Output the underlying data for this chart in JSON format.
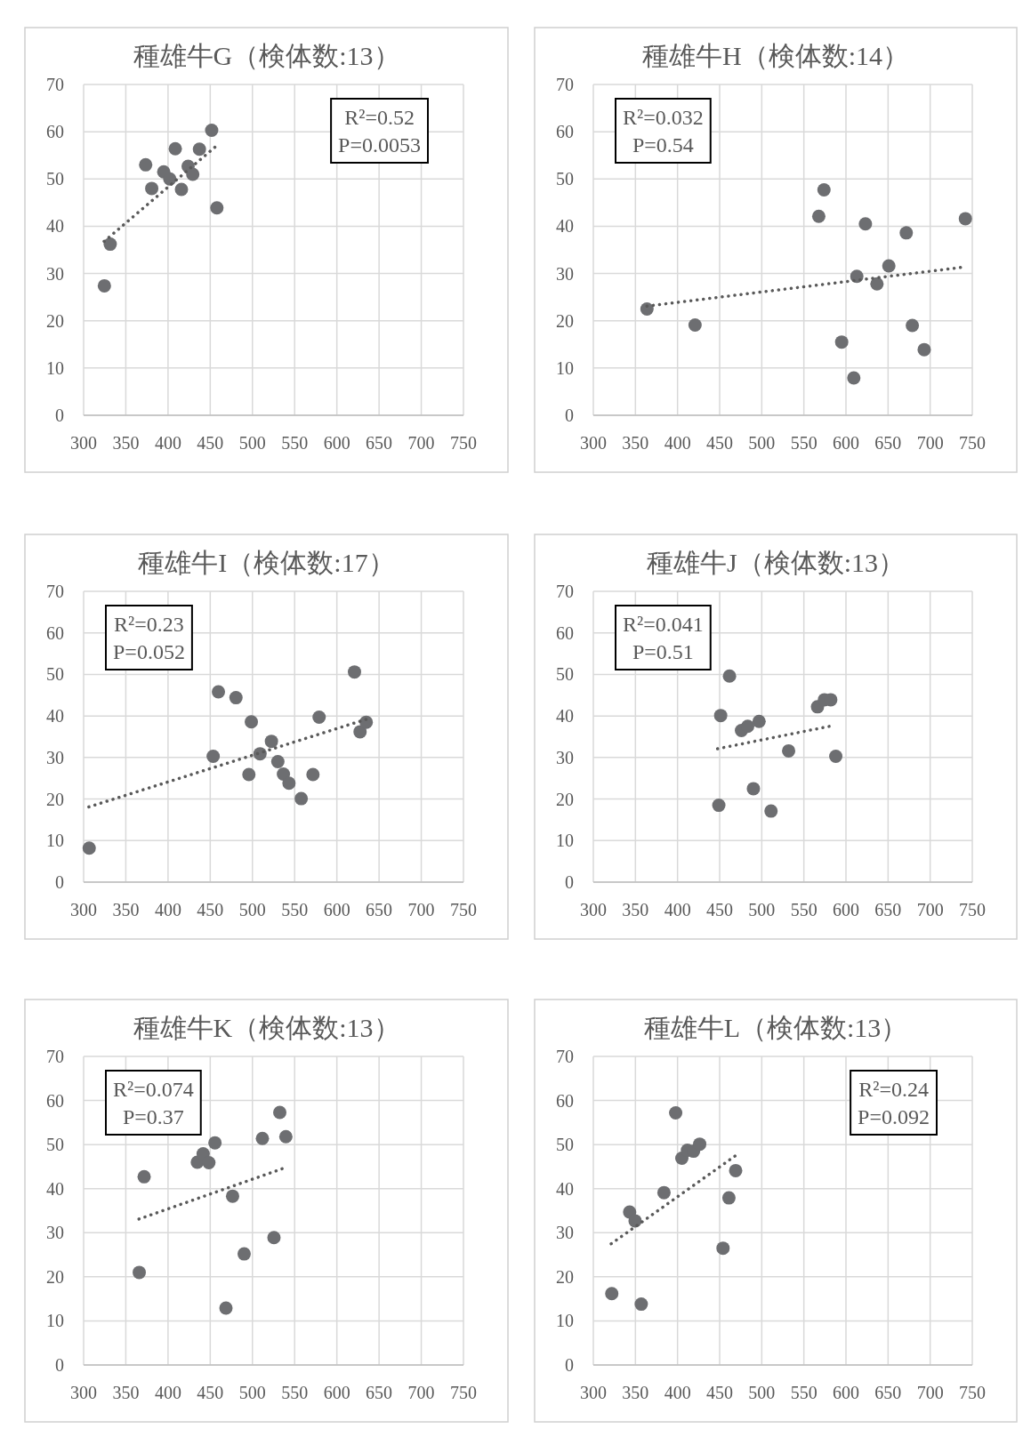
{
  "chart_data": [
    {
      "type": "scatter",
      "title": "種雄牛G（検体数:13）",
      "xlim": [
        300,
        750
      ],
      "xticks": [
        300,
        350,
        400,
        450,
        500,
        550,
        600,
        650,
        700,
        750
      ],
      "ylim": [
        0,
        70
      ],
      "yticks": [
        0,
        10,
        20,
        30,
        40,
        50,
        60,
        70
      ],
      "grid": true,
      "annotations": [
        "R²=0.52",
        "P=0.0053"
      ],
      "series": [
        {
          "type": "scatter",
          "marker": "circle",
          "color": "#6d6e71",
          "x": [
            324.6,
            331.5,
            373.5,
            380.7,
            394.9,
            402.1,
            408.6,
            415.9,
            423.8,
            429.3,
            437.2,
            451.7,
            457.9
          ],
          "values": [
            27.4,
            36.2,
            53.0,
            48.0,
            51.5,
            50.0,
            56.4,
            47.8,
            52.7,
            51.0,
            56.3,
            60.3,
            43.9
          ]
        },
        {
          "type": "line",
          "line_style": "dotted",
          "color": "#595959",
          "x": [
            324.3,
            458.6
          ],
          "values": [
            36.8,
            57.2
          ]
        }
      ]
    },
    {
      "type": "scatter",
      "title": "種雄牛H（検体数:14）",
      "xlim": [
        300,
        750
      ],
      "xticks": [
        300,
        350,
        400,
        450,
        500,
        550,
        600,
        650,
        700,
        750
      ],
      "ylim": [
        0,
        70
      ],
      "yticks": [
        0,
        10,
        20,
        30,
        40,
        50,
        60,
        70
      ],
      "grid": true,
      "annotations": [
        "R²=0.032",
        "P=0.54"
      ],
      "series": [
        {
          "type": "scatter",
          "marker": "circle",
          "color": "#6d6e71",
          "x": [
            363.7,
            420.8,
            567.7,
            573.9,
            594.9,
            609.3,
            612.9,
            623.1,
            636.8,
            650.9,
            671.6,
            678.8,
            692.9,
            741.8
          ],
          "values": [
            22.5,
            19.1,
            42.1,
            47.7,
            15.5,
            7.9,
            29.4,
            40.5,
            27.8,
            31.6,
            38.6,
            19.0,
            13.9,
            41.6
          ]
        },
        {
          "type": "line",
          "line_style": "dotted",
          "color": "#595959",
          "x": [
            363.7,
            737.1
          ],
          "values": [
            23.1,
            31.3
          ]
        }
      ]
    },
    {
      "type": "scatter",
      "title": "種雄牛I（検体数:17）",
      "xlim": [
        300,
        750
      ],
      "xticks": [
        300,
        350,
        400,
        450,
        500,
        550,
        600,
        650,
        700,
        750
      ],
      "ylim": [
        0,
        70
      ],
      "yticks": [
        0,
        10,
        20,
        30,
        40,
        50,
        60,
        70
      ],
      "grid": true,
      "annotations": [
        "R²=0.23",
        "P=0.052"
      ],
      "series": [
        {
          "type": "scatter",
          "marker": "circle",
          "color": "#6d6e71",
          "x": [
            306.6,
            453.5,
            459.7,
            480.5,
            495.8,
            498.7,
            509.0,
            522.5,
            530.1,
            536.7,
            543.3,
            557.8,
            571.7,
            579.0,
            620.9,
            627.5,
            634.8
          ],
          "values": [
            8.2,
            30.3,
            45.8,
            44.4,
            25.9,
            38.6,
            30.9,
            33.9,
            29.0,
            26.0,
            23.8,
            20.1,
            25.9,
            39.7,
            50.6,
            36.2,
            38.5
          ]
        },
        {
          "type": "line",
          "line_style": "dotted",
          "color": "#595959",
          "x": [
            306.2,
            634.8
          ],
          "values": [
            18.1,
            39.2
          ]
        }
      ]
    },
    {
      "type": "scatter",
      "title": "種雄牛J（検体数:13）",
      "xlim": [
        300,
        750
      ],
      "xticks": [
        300,
        350,
        400,
        450,
        500,
        550,
        600,
        650,
        700,
        750
      ],
      "ylim": [
        0,
        70
      ],
      "yticks": [
        0,
        10,
        20,
        30,
        40,
        50,
        60,
        70
      ],
      "grid": true,
      "annotations": [
        "R²=0.041",
        "P=0.51"
      ],
      "series": [
        {
          "type": "scatter",
          "marker": "circle",
          "color": "#6d6e71",
          "x": [
            449.0,
            451.2,
            461.7,
            475.9,
            483.3,
            490.1,
            496.8,
            511.0,
            531.9,
            566.2,
            574.4,
            581.9,
            587.9
          ],
          "values": [
            18.5,
            40.1,
            49.6,
            36.5,
            37.5,
            22.5,
            38.7,
            17.1,
            31.6,
            42.2,
            43.9,
            43.9,
            30.3
          ]
        },
        {
          "type": "line",
          "line_style": "dotted",
          "color": "#595959",
          "x": [
            447.5,
            582.7
          ],
          "values": [
            32.1,
            37.6
          ]
        }
      ]
    },
    {
      "type": "scatter",
      "title": "種雄牛K（検体数:13）",
      "xlim": [
        300,
        750
      ],
      "xticks": [
        300,
        350,
        400,
        450,
        500,
        550,
        600,
        650,
        700,
        750
      ],
      "ylim": [
        0,
        70
      ],
      "yticks": [
        0,
        10,
        20,
        30,
        40,
        50,
        60,
        70
      ],
      "grid": true,
      "annotations": [
        "R²=0.074",
        "P=0.37"
      ],
      "series": [
        {
          "type": "scatter",
          "marker": "circle",
          "color": "#6d6e71",
          "x": [
            365.9,
            371.7,
            434.7,
            441.6,
            448.4,
            455.6,
            468.6,
            476.5,
            490.2,
            511.8,
            525.5,
            532.4,
            539.6
          ],
          "values": [
            21.0,
            42.7,
            46.0,
            47.9,
            45.9,
            50.4,
            12.9,
            38.3,
            25.2,
            51.4,
            28.9,
            57.3,
            51.8
          ]
        },
        {
          "type": "line",
          "line_style": "dotted",
          "color": "#595959",
          "x": [
            365.6,
            539.6
          ],
          "values": [
            33.1,
            44.8
          ]
        }
      ]
    },
    {
      "type": "scatter",
      "title": "種雄牛L（検体数:13）",
      "xlim": [
        300,
        750
      ],
      "xticks": [
        300,
        350,
        400,
        450,
        500,
        550,
        600,
        650,
        700,
        750
      ],
      "ylim": [
        0,
        70
      ],
      "yticks": [
        0,
        10,
        20,
        30,
        40,
        50,
        60,
        70
      ],
      "grid": true,
      "annotations": [
        "R²=0.24",
        "P=0.092"
      ],
      "series": [
        {
          "type": "scatter",
          "marker": "circle",
          "color": "#6d6e71",
          "x": [
            321.9,
            343.1,
            349.6,
            356.9,
            383.9,
            397.8,
            405.1,
            411.7,
            419.0,
            426.3,
            454.0,
            461.0,
            469.0
          ],
          "values": [
            16.2,
            34.7,
            32.7,
            13.8,
            39.1,
            57.2,
            46.9,
            48.7,
            48.5,
            50.1,
            26.5,
            37.9,
            44.1
          ]
        },
        {
          "type": "line",
          "line_style": "dotted",
          "color": "#595959",
          "x": [
            321.2,
            468.2
          ],
          "values": [
            27.5,
            47.4
          ]
        }
      ]
    }
  ]
}
